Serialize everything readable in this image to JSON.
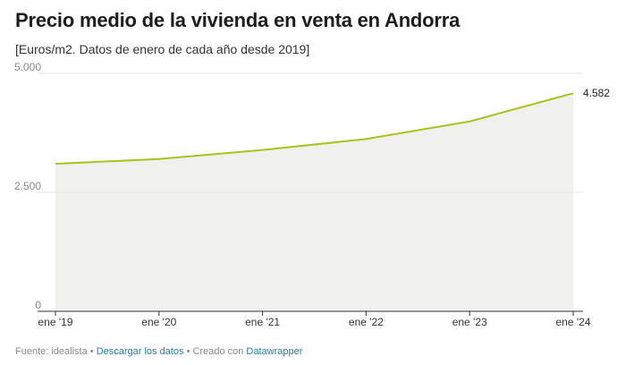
{
  "header": {
    "title": "Precio medio de la vivienda en venta en Andorra",
    "subtitle": "[Euros/m2. Datos de enero de cada año desde 2019]"
  },
  "colors": {
    "line": "#a8c31c",
    "area": "#f0f0ef",
    "grid": "#e6e6e6",
    "axis": "#333333",
    "link": "#1d81a2"
  },
  "chart_data": {
    "type": "area",
    "title": "Precio medio de la vivienda en venta en Andorra",
    "subtitle": "[Euros/m2. Datos de enero de cada año desde 2019]",
    "x": [
      "ene '19",
      "ene '20",
      "ene '21",
      "ene '22",
      "ene '23",
      "ene '24"
    ],
    "series": [
      {
        "values": [
          3100,
          3200,
          3390,
          3620,
          3990,
          4582
        ]
      }
    ],
    "ylim": [
      0,
      5000
    ],
    "yticks": [
      0,
      2500,
      5000
    ],
    "ytick_labels": [
      "0",
      "2.500",
      "5.000"
    ],
    "end_label": "4.582",
    "grid": true,
    "legend": "none"
  },
  "footer": {
    "source": "Fuente: idealista",
    "sep": " • ",
    "download": "Descargar los datos",
    "created": "Creado con",
    "tool": "Datawrapper"
  }
}
